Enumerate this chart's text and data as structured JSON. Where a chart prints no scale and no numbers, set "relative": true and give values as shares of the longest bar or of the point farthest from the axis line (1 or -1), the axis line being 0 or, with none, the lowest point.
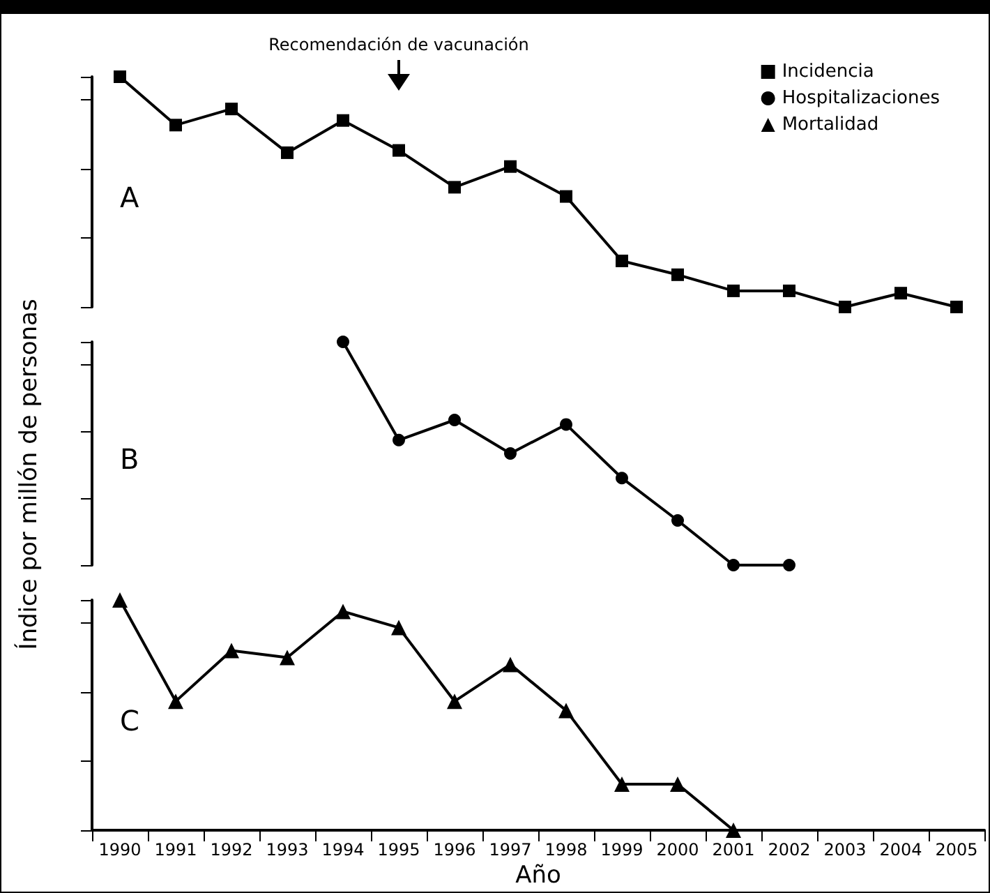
{
  "chart_data": [
    {
      "type": "line",
      "relative": true,
      "categories": [
        "1990",
        "1991",
        "1992",
        "1993",
        "1994",
        "1995",
        "1996",
        "1997",
        "1998",
        "1999",
        "2000",
        "2001",
        "2002",
        "2003",
        "2004",
        "2005"
      ],
      "series": [
        {
          "name": "Incidencia",
          "color": "#000000",
          "values": [
            1,
            0.79,
            0.86,
            0.67,
            0.81,
            0.68,
            0.52,
            0.61,
            0.48,
            0.2,
            0.14,
            0.07,
            0.07,
            0,
            0.06,
            0
          ]
        }
      ],
      "marker": "square",
      "legend": "top right",
      "tick_labels": false,
      "annotations": [
        "A",
        "Recomendación de vacunación"
      ]
    },
    {
      "type": "line",
      "relative": true,
      "categories": [
        "1990",
        "1991",
        "1992",
        "1993",
        "1994",
        "1995",
        "1996",
        "1997",
        "1998",
        "1999",
        "2000",
        "2001",
        "2002",
        "2003",
        "2004",
        "2005"
      ],
      "series": [
        {
          "name": "Hospitalizaciones",
          "color": "#000000",
          "values": [
            null,
            null,
            null,
            null,
            1,
            0.56,
            0.65,
            0.5,
            0.63,
            0.39,
            0.2,
            0,
            0,
            null,
            null,
            null
          ]
        }
      ],
      "marker": "circle",
      "legend": "top right",
      "tick_labels": false,
      "ylabel": "Índice por millón de personas",
      "annotations": [
        "B"
      ]
    },
    {
      "type": "line",
      "relative": true,
      "categories": [
        "1990",
        "1991",
        "1992",
        "1993",
        "1994",
        "1995",
        "1996",
        "1997",
        "1998",
        "1999",
        "2000",
        "2001",
        "2002",
        "2003",
        "2004",
        "2005"
      ],
      "series": [
        {
          "name": "Mortalidad",
          "color": "#000000",
          "values": [
            1,
            0.56,
            0.78,
            0.75,
            0.95,
            0.88,
            0.56,
            0.72,
            0.52,
            0.2,
            0.2,
            0,
            null,
            null,
            null,
            null
          ]
        }
      ],
      "marker": "triangle",
      "legend": "top right",
      "tick_labels": "x",
      "xlabel": "Año",
      "annotations": [
        "C"
      ]
    }
  ]
}
